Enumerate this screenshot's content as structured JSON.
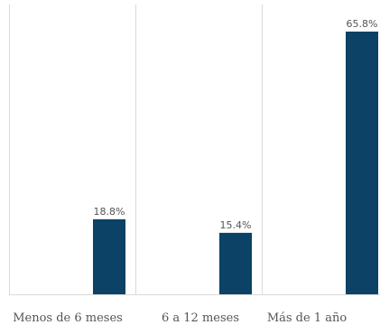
{
  "chart_data": {
    "type": "bar",
    "categories": [
      "Menos de 6 meses",
      "6  a 12 meses",
      "Más de 1 año"
    ],
    "values": [
      18.8,
      15.4,
      65.8
    ],
    "value_labels": [
      "18.8%",
      "15.4%",
      "65.8%"
    ],
    "ylim": [
      0,
      70
    ],
    "grid": false,
    "category_separators": true,
    "colors": {
      "bar": "#0b4265",
      "separator": "#d9d9d9",
      "text": "#555555"
    }
  }
}
